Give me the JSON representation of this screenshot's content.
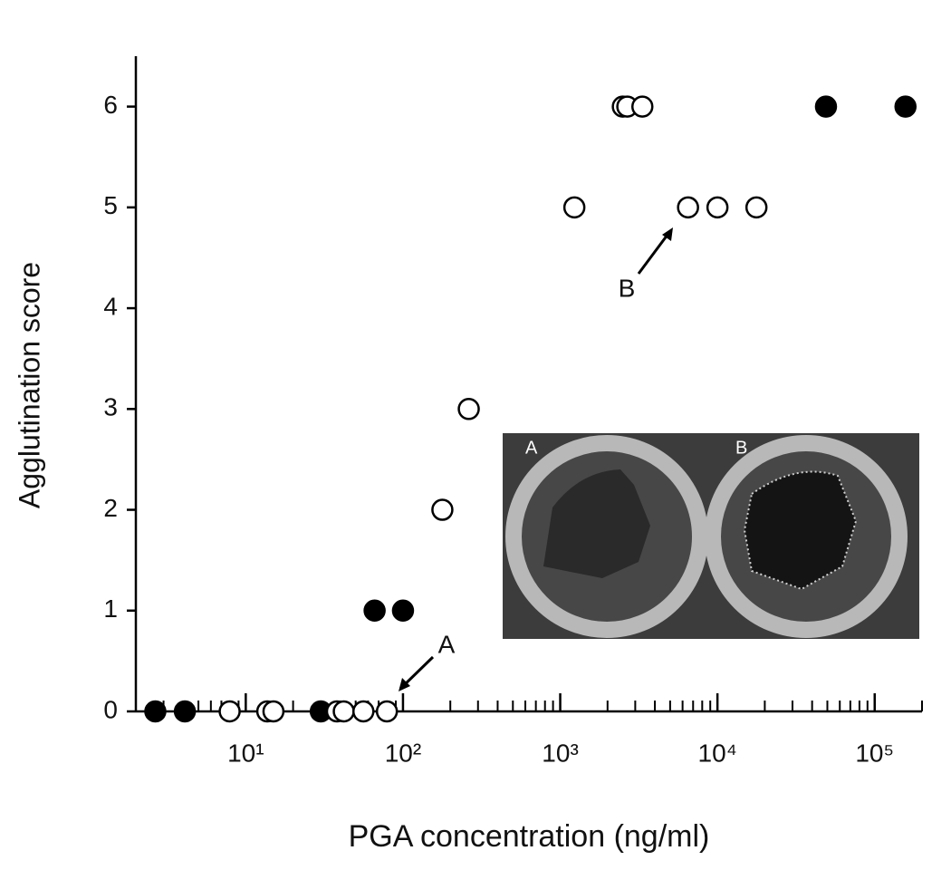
{
  "chart_data": {
    "type": "scatter",
    "x_label": "PGA concentration (ng/ml)",
    "y_label": "Agglutination score",
    "log_x": true,
    "xlim": [
      2,
      200000
    ],
    "xticks": [
      {
        "value": 10,
        "label": "10¹"
      },
      {
        "value": 100,
        "label": "10²"
      },
      {
        "value": 1000,
        "label": "10³"
      },
      {
        "value": 10000,
        "label": "10⁴"
      },
      {
        "value": 100000,
        "label": "10⁵"
      }
    ],
    "ylim": [
      0,
      6.5
    ],
    "yticks": [
      0,
      1,
      2,
      3,
      4,
      5,
      6
    ],
    "series": [
      {
        "color": "#000000",
        "x": [
          2.66,
          4.1,
          30,
          66,
          100,
          49000,
          157000
        ],
        "values": [
          0,
          0,
          0,
          1,
          1,
          6,
          6
        ]
      },
      {
        "color": "#ffffff",
        "x": [
          7.9,
          13.7,
          15,
          38,
          42,
          56,
          79,
          178,
          262,
          1230,
          2500,
          2670,
          3330,
          6500,
          10000,
          17700
        ],
        "values": [
          0,
          0,
          0,
          0,
          0,
          0,
          0,
          2,
          3,
          5,
          6,
          6,
          6,
          5,
          5,
          5
        ]
      }
    ],
    "annotations": [
      "A",
      "B"
    ],
    "inset_labels": [
      "A",
      "B"
    ]
  }
}
